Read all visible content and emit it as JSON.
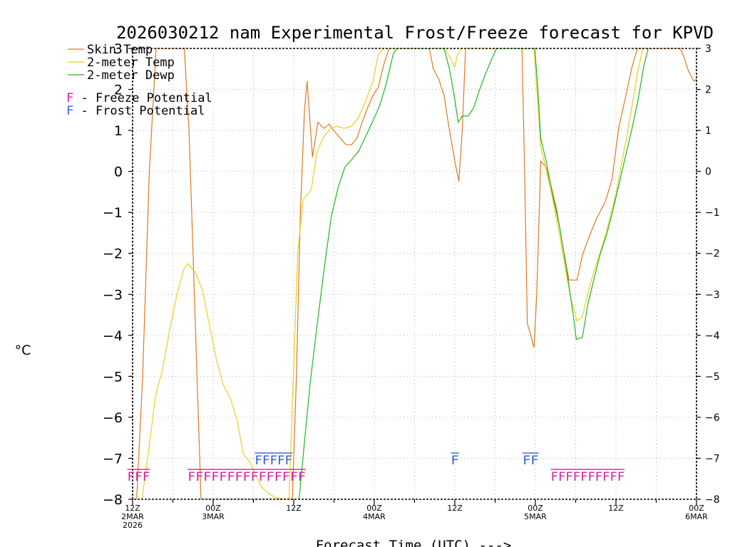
{
  "chart_data": {
    "type": "line",
    "title": "2026030212 nam Experimental Frost/Freeze forecast for KPVD",
    "xlabel": "Forecast Time (UTC) --->",
    "ylabel": "°C",
    "ylim": [
      -8,
      3
    ],
    "xlim": [
      0,
      84
    ],
    "yticks": [
      -8,
      -7,
      -6,
      -5,
      -4,
      -3,
      -2,
      -1,
      0,
      1,
      2,
      3
    ],
    "ytick_labels": [
      "−8",
      "−7",
      "−6",
      "−5",
      "−4",
      "−3",
      "−2",
      "−1",
      "0",
      "1",
      "2",
      "3"
    ],
    "xticks": [
      {
        "x": 0,
        "lines": [
          "12Z",
          "2MAR",
          "2026"
        ]
      },
      {
        "x": 12,
        "lines": [
          "00Z",
          "3MAR"
        ]
      },
      {
        "x": 24,
        "lines": [
          "12Z"
        ]
      },
      {
        "x": 36,
        "lines": [
          "00Z",
          "4MAR"
        ]
      },
      {
        "x": 48,
        "lines": [
          "12Z"
        ]
      },
      {
        "x": 60,
        "lines": [
          "00Z",
          "5MAR"
        ]
      },
      {
        "x": 72,
        "lines": [
          "12Z"
        ]
      },
      {
        "x": 84,
        "lines": [
          "00Z",
          "6MAR"
        ]
      }
    ],
    "grid": true,
    "legend_position": "top-left",
    "series": [
      {
        "name": "Skin Temp",
        "color": "#e07820",
        "points": [
          [
            0.6,
            -8
          ],
          [
            1.5,
            -5
          ],
          [
            2.5,
            0
          ],
          [
            3.5,
            3
          ],
          [
            7.7,
            3
          ],
          [
            8.4,
            1
          ],
          [
            9,
            -2
          ],
          [
            9.6,
            -5
          ],
          [
            10.2,
            -8
          ],
          [
            23.8,
            -8
          ],
          [
            24.4,
            -5
          ],
          [
            25,
            -1
          ],
          [
            25.6,
            1.5
          ],
          [
            26,
            2.2
          ],
          [
            26.8,
            0.35
          ],
          [
            27.6,
            1.2
          ],
          [
            28.5,
            1.05
          ],
          [
            29.3,
            1.15
          ],
          [
            30.2,
            0.95
          ],
          [
            31,
            0.8
          ],
          [
            31.8,
            0.65
          ],
          [
            32.6,
            0.65
          ],
          [
            33.4,
            0.8
          ],
          [
            34.2,
            1.2
          ],
          [
            35,
            1.55
          ],
          [
            35.8,
            1.85
          ],
          [
            36.6,
            2.05
          ],
          [
            37.4,
            2.6
          ],
          [
            38.2,
            3
          ],
          [
            44.2,
            3
          ],
          [
            44.8,
            2.5
          ],
          [
            45.6,
            2.25
          ],
          [
            46.4,
            1.85
          ],
          [
            47.2,
            1
          ],
          [
            48,
            0.25
          ],
          [
            48.6,
            -0.25
          ],
          [
            49.1,
            1
          ],
          [
            49.6,
            3
          ],
          [
            58,
            3
          ],
          [
            58.4,
            0
          ],
          [
            58.8,
            -3.7
          ],
          [
            59.8,
            -4.3
          ],
          [
            60.2,
            -3
          ],
          [
            60.8,
            0.25
          ],
          [
            61.6,
            0.1
          ],
          [
            62.4,
            -0.4
          ],
          [
            63.2,
            -0.95
          ],
          [
            64,
            -1.75
          ],
          [
            65,
            -2.65
          ],
          [
            66.2,
            -2.65
          ],
          [
            67,
            -2.05
          ],
          [
            68,
            -1.6
          ],
          [
            69.1,
            -1.15
          ],
          [
            70.4,
            -0.75
          ],
          [
            71.4,
            -0.2
          ],
          [
            72.4,
            1.05
          ],
          [
            73.4,
            1.8
          ],
          [
            74.4,
            2.55
          ],
          [
            75.2,
            3
          ],
          [
            81.6,
            3
          ],
          [
            82.2,
            2.75
          ],
          [
            82.8,
            2.45
          ],
          [
            83.6,
            2.2
          ],
          [
            84,
            2.25
          ]
        ]
      },
      {
        "name": "2-meter Temp",
        "color": "#e8d020",
        "points": [
          [
            1.4,
            -8
          ],
          [
            2.4,
            -6.8
          ],
          [
            3.4,
            -5.5
          ],
          [
            4.5,
            -4.8
          ],
          [
            5.6,
            -3.8
          ],
          [
            6.6,
            -3
          ],
          [
            7.6,
            -2.4
          ],
          [
            8.2,
            -2.25
          ],
          [
            9.3,
            -2.45
          ],
          [
            10.4,
            -2.9
          ],
          [
            11.5,
            -3.8
          ],
          [
            12.5,
            -4.6
          ],
          [
            13.5,
            -5.2
          ],
          [
            14.6,
            -5.55
          ],
          [
            15.6,
            -6.1
          ],
          [
            16.5,
            -6.9
          ],
          [
            17.5,
            -7.1
          ],
          [
            18.3,
            -7.4
          ],
          [
            19.2,
            -7.7
          ],
          [
            20.2,
            -7.85
          ],
          [
            21.2,
            -7.95
          ],
          [
            22.5,
            -8
          ],
          [
            23.3,
            -8
          ],
          [
            24.6,
            -2
          ],
          [
            25.4,
            -0.7
          ],
          [
            26.6,
            -0.45
          ],
          [
            27.5,
            0.5
          ],
          [
            28.5,
            0.85
          ],
          [
            29.5,
            1.05
          ],
          [
            30.5,
            1.1
          ],
          [
            31.5,
            1.05
          ],
          [
            32.6,
            1.1
          ],
          [
            33.6,
            1.3
          ],
          [
            34.7,
            1.7
          ],
          [
            35.8,
            2.2
          ],
          [
            36.6,
            2.85
          ],
          [
            37.4,
            3
          ],
          [
            46.5,
            3
          ],
          [
            47.2,
            2.8
          ],
          [
            48,
            2.55
          ],
          [
            48.4,
            2.85
          ],
          [
            49,
            3
          ],
          [
            59.8,
            3
          ],
          [
            60.8,
            0.6
          ],
          [
            61.6,
            0.05
          ],
          [
            62.6,
            -0.7
          ],
          [
            63.6,
            -1.55
          ],
          [
            64.4,
            -2.3
          ],
          [
            65.2,
            -3.05
          ],
          [
            66.2,
            -3.65
          ],
          [
            67,
            -3.55
          ],
          [
            68,
            -2.85
          ],
          [
            69,
            -2.3
          ],
          [
            70,
            -1.8
          ],
          [
            71,
            -1.2
          ],
          [
            72,
            -0.55
          ],
          [
            72.8,
            0.15
          ],
          [
            73.6,
            0.85
          ],
          [
            74.4,
            1.6
          ],
          [
            75.2,
            2.4
          ],
          [
            76,
            3
          ]
        ]
      },
      {
        "name": "2-meter Dewp",
        "color": "#20b820",
        "points": [
          [
            24.8,
            -8
          ],
          [
            25.6,
            -6.6
          ],
          [
            26.5,
            -5.1
          ],
          [
            27.6,
            -3.6
          ],
          [
            28.6,
            -2.3
          ],
          [
            29.6,
            -1.1
          ],
          [
            30.6,
            -0.4
          ],
          [
            31.6,
            0.1
          ],
          [
            32.7,
            0.3
          ],
          [
            33.7,
            0.5
          ],
          [
            34.7,
            0.85
          ],
          [
            35.7,
            1.2
          ],
          [
            36.8,
            1.6
          ],
          [
            37.8,
            2.15
          ],
          [
            38.8,
            2.85
          ],
          [
            39.4,
            3
          ],
          [
            46.4,
            3
          ],
          [
            47.2,
            2.5
          ],
          [
            48,
            1.75
          ],
          [
            48.5,
            1.2
          ],
          [
            49.1,
            1.35
          ],
          [
            50,
            1.35
          ],
          [
            50.8,
            1.55
          ],
          [
            51.6,
            1.95
          ],
          [
            52.5,
            2.35
          ],
          [
            53.4,
            2.7
          ],
          [
            54.2,
            3
          ],
          [
            59.9,
            3
          ],
          [
            60.3,
            2.2
          ],
          [
            60.8,
            0.8
          ],
          [
            61.6,
            0.25
          ],
          [
            62.6,
            -0.6
          ],
          [
            63.6,
            -1.35
          ],
          [
            64.6,
            -2.35
          ],
          [
            65.6,
            -3.45
          ],
          [
            66.1,
            -4.1
          ],
          [
            67,
            -4.05
          ],
          [
            67.8,
            -3.25
          ],
          [
            68.7,
            -2.65
          ],
          [
            69.6,
            -2.05
          ],
          [
            70.6,
            -1.55
          ],
          [
            71.4,
            -1.05
          ],
          [
            72.4,
            -0.35
          ],
          [
            73.4,
            0.35
          ],
          [
            74.4,
            1.05
          ],
          [
            75.3,
            1.75
          ],
          [
            76.2,
            2.6
          ],
          [
            76.8,
            3
          ]
        ]
      }
    ],
    "freeze_markers": {
      "label_letter": "F",
      "color": "#d020a0",
      "y": -7.55,
      "runs": [
        {
          "text": "FFF",
          "x_start": -0.8,
          "x_end": 2.6
        },
        {
          "text": "FFFFFFFFFFFFFFF",
          "x_start": 8.2,
          "x_end": 25.8
        },
        {
          "text": "FFFFFFFFFF",
          "x_start": 62.3,
          "x_end": 73.3
        }
      ]
    },
    "frost_markers": {
      "label_letter": "F",
      "color": "#3060d8",
      "y": -7.15,
      "runs": [
        {
          "text": "FFFFF",
          "x_start": 18.2,
          "x_end": 23.8
        },
        {
          "text": "F",
          "x_start": 47.4,
          "x_end": 48.6
        },
        {
          "text": "FF",
          "x_start": 58.1,
          "x_end": 60.5
        }
      ]
    },
    "legend": [
      {
        "text": "Skin Temp",
        "color": "#e07820"
      },
      {
        "text": "2-meter Temp",
        "color": "#e8d020"
      },
      {
        "text": "2-meter Dewp",
        "color": "#20b820"
      }
    ],
    "legend_markers": [
      {
        "letter": "F",
        "text": " - Freeze Potential",
        "color": "#d020a0"
      },
      {
        "letter": "F",
        "text": " - Frost Potential",
        "color": "#3060d8"
      }
    ]
  }
}
